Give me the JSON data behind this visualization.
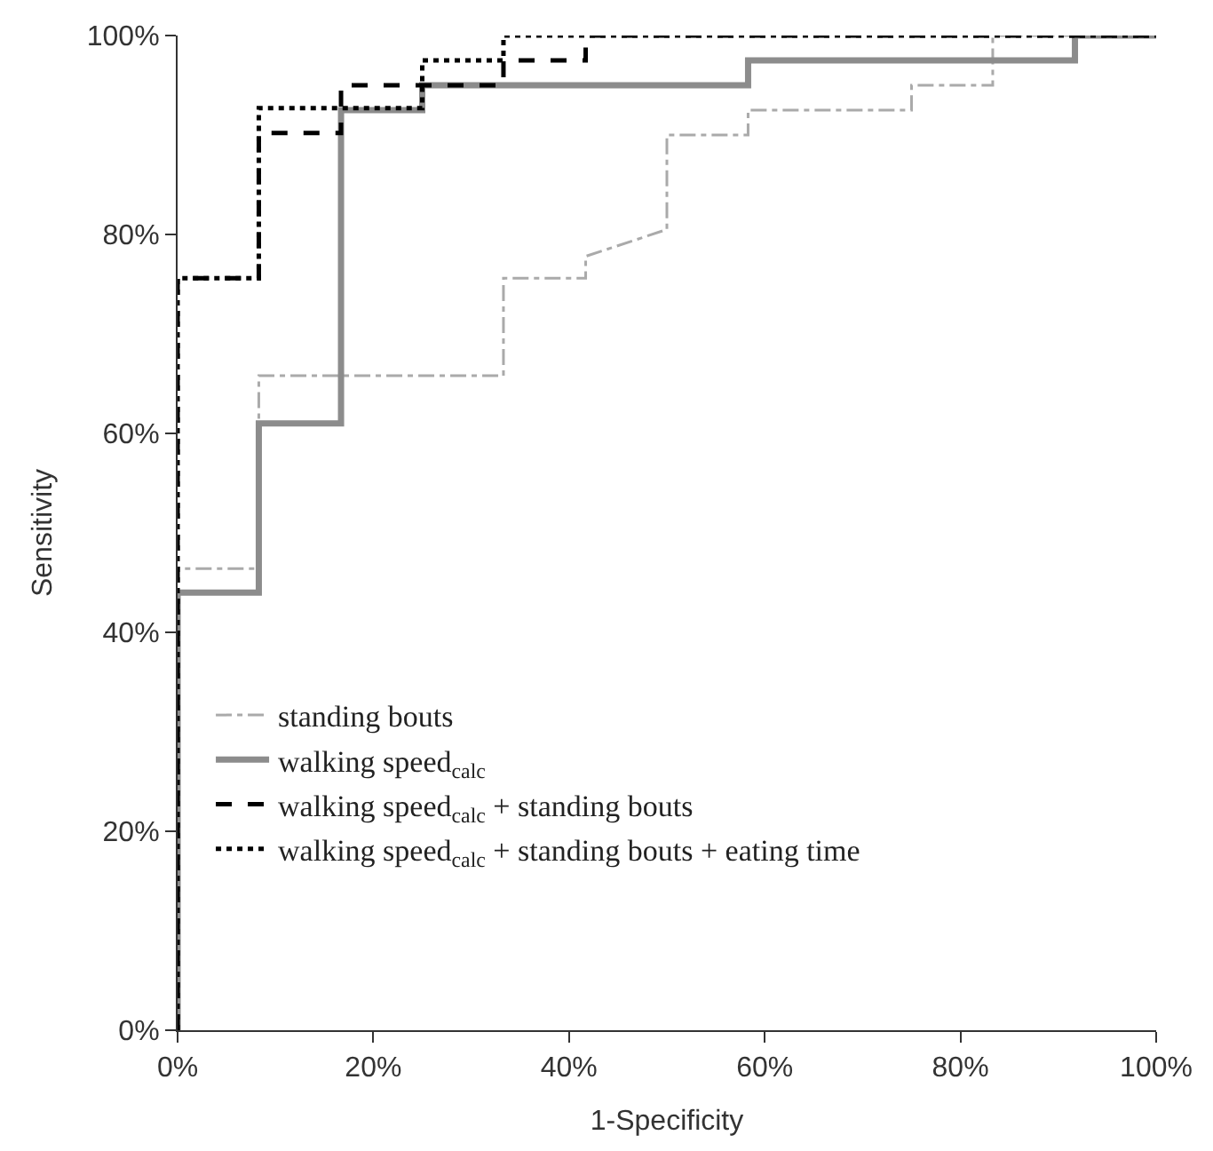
{
  "chart_data": {
    "type": "line",
    "xlabel": "1-Specificity",
    "ylabel": "Sensitivity",
    "xlim": [
      0,
      100
    ],
    "ylim": [
      0,
      100
    ],
    "xticks": [
      {
        "value": 0,
        "label": "0%"
      },
      {
        "value": 20,
        "label": "20%"
      },
      {
        "value": 40,
        "label": "40%"
      },
      {
        "value": 60,
        "label": "60%"
      },
      {
        "value": 80,
        "label": "80%"
      },
      {
        "value": 100,
        "label": "100%"
      }
    ],
    "yticks": [
      {
        "value": 0,
        "label": "0%"
      },
      {
        "value": 20,
        "label": "20%"
      },
      {
        "value": 40,
        "label": "40%"
      },
      {
        "value": 60,
        "label": "60%"
      },
      {
        "value": 80,
        "label": "80%"
      },
      {
        "value": 100,
        "label": "100%"
      }
    ],
    "legend": "bottom left",
    "marker": "none",
    "series": [
      {
        "name": "standing bouts",
        "color": "#aaaaaa",
        "line_style": "dashdot",
        "x": [
          0,
          0,
          8.3,
          8.3,
          33.3,
          33.3,
          41.7,
          41.7,
          50,
          50,
          58.3,
          58.3,
          75,
          75,
          83.3,
          83.3,
          100
        ],
        "values": [
          0,
          46.4,
          46.4,
          65.8,
          65.8,
          75.6,
          75.6,
          77.8,
          80.5,
          90,
          90,
          92.5,
          92.5,
          95,
          95,
          100,
          100
        ]
      },
      {
        "name": "walking speed$_{calc}$",
        "color": "#8c8c8c",
        "line_style": "solid",
        "x": [
          0,
          0,
          8.3,
          8.3,
          16.7,
          16.7,
          25,
          25,
          58.3,
          58.3,
          91.7,
          91.7,
          100
        ],
        "values": [
          0,
          44,
          44,
          61,
          61,
          92.5,
          92.5,
          95,
          95,
          97.5,
          97.5,
          100,
          100
        ]
      },
      {
        "name": "walking speed$_{calc}$ + standing bouts",
        "color": "#000000",
        "line_style": "dashed",
        "x": [
          0,
          0,
          8.3,
          8.3,
          16.7,
          16.7,
          33.3,
          33.3,
          41.7,
          41.7,
          100
        ],
        "values": [
          0,
          75.6,
          75.6,
          90.2,
          90.2,
          95,
          95,
          97.5,
          97.5,
          100,
          100
        ]
      },
      {
        "name": "walking speed$_{calc}$ + standing bouts + eating time",
        "color": "#000000",
        "line_style": "dotted",
        "x": [
          0,
          0,
          8.3,
          8.3,
          25,
          25,
          33.3,
          33.3,
          100
        ],
        "values": [
          0,
          75.6,
          75.6,
          92.7,
          92.7,
          97.5,
          97.5,
          100,
          100
        ]
      }
    ]
  }
}
